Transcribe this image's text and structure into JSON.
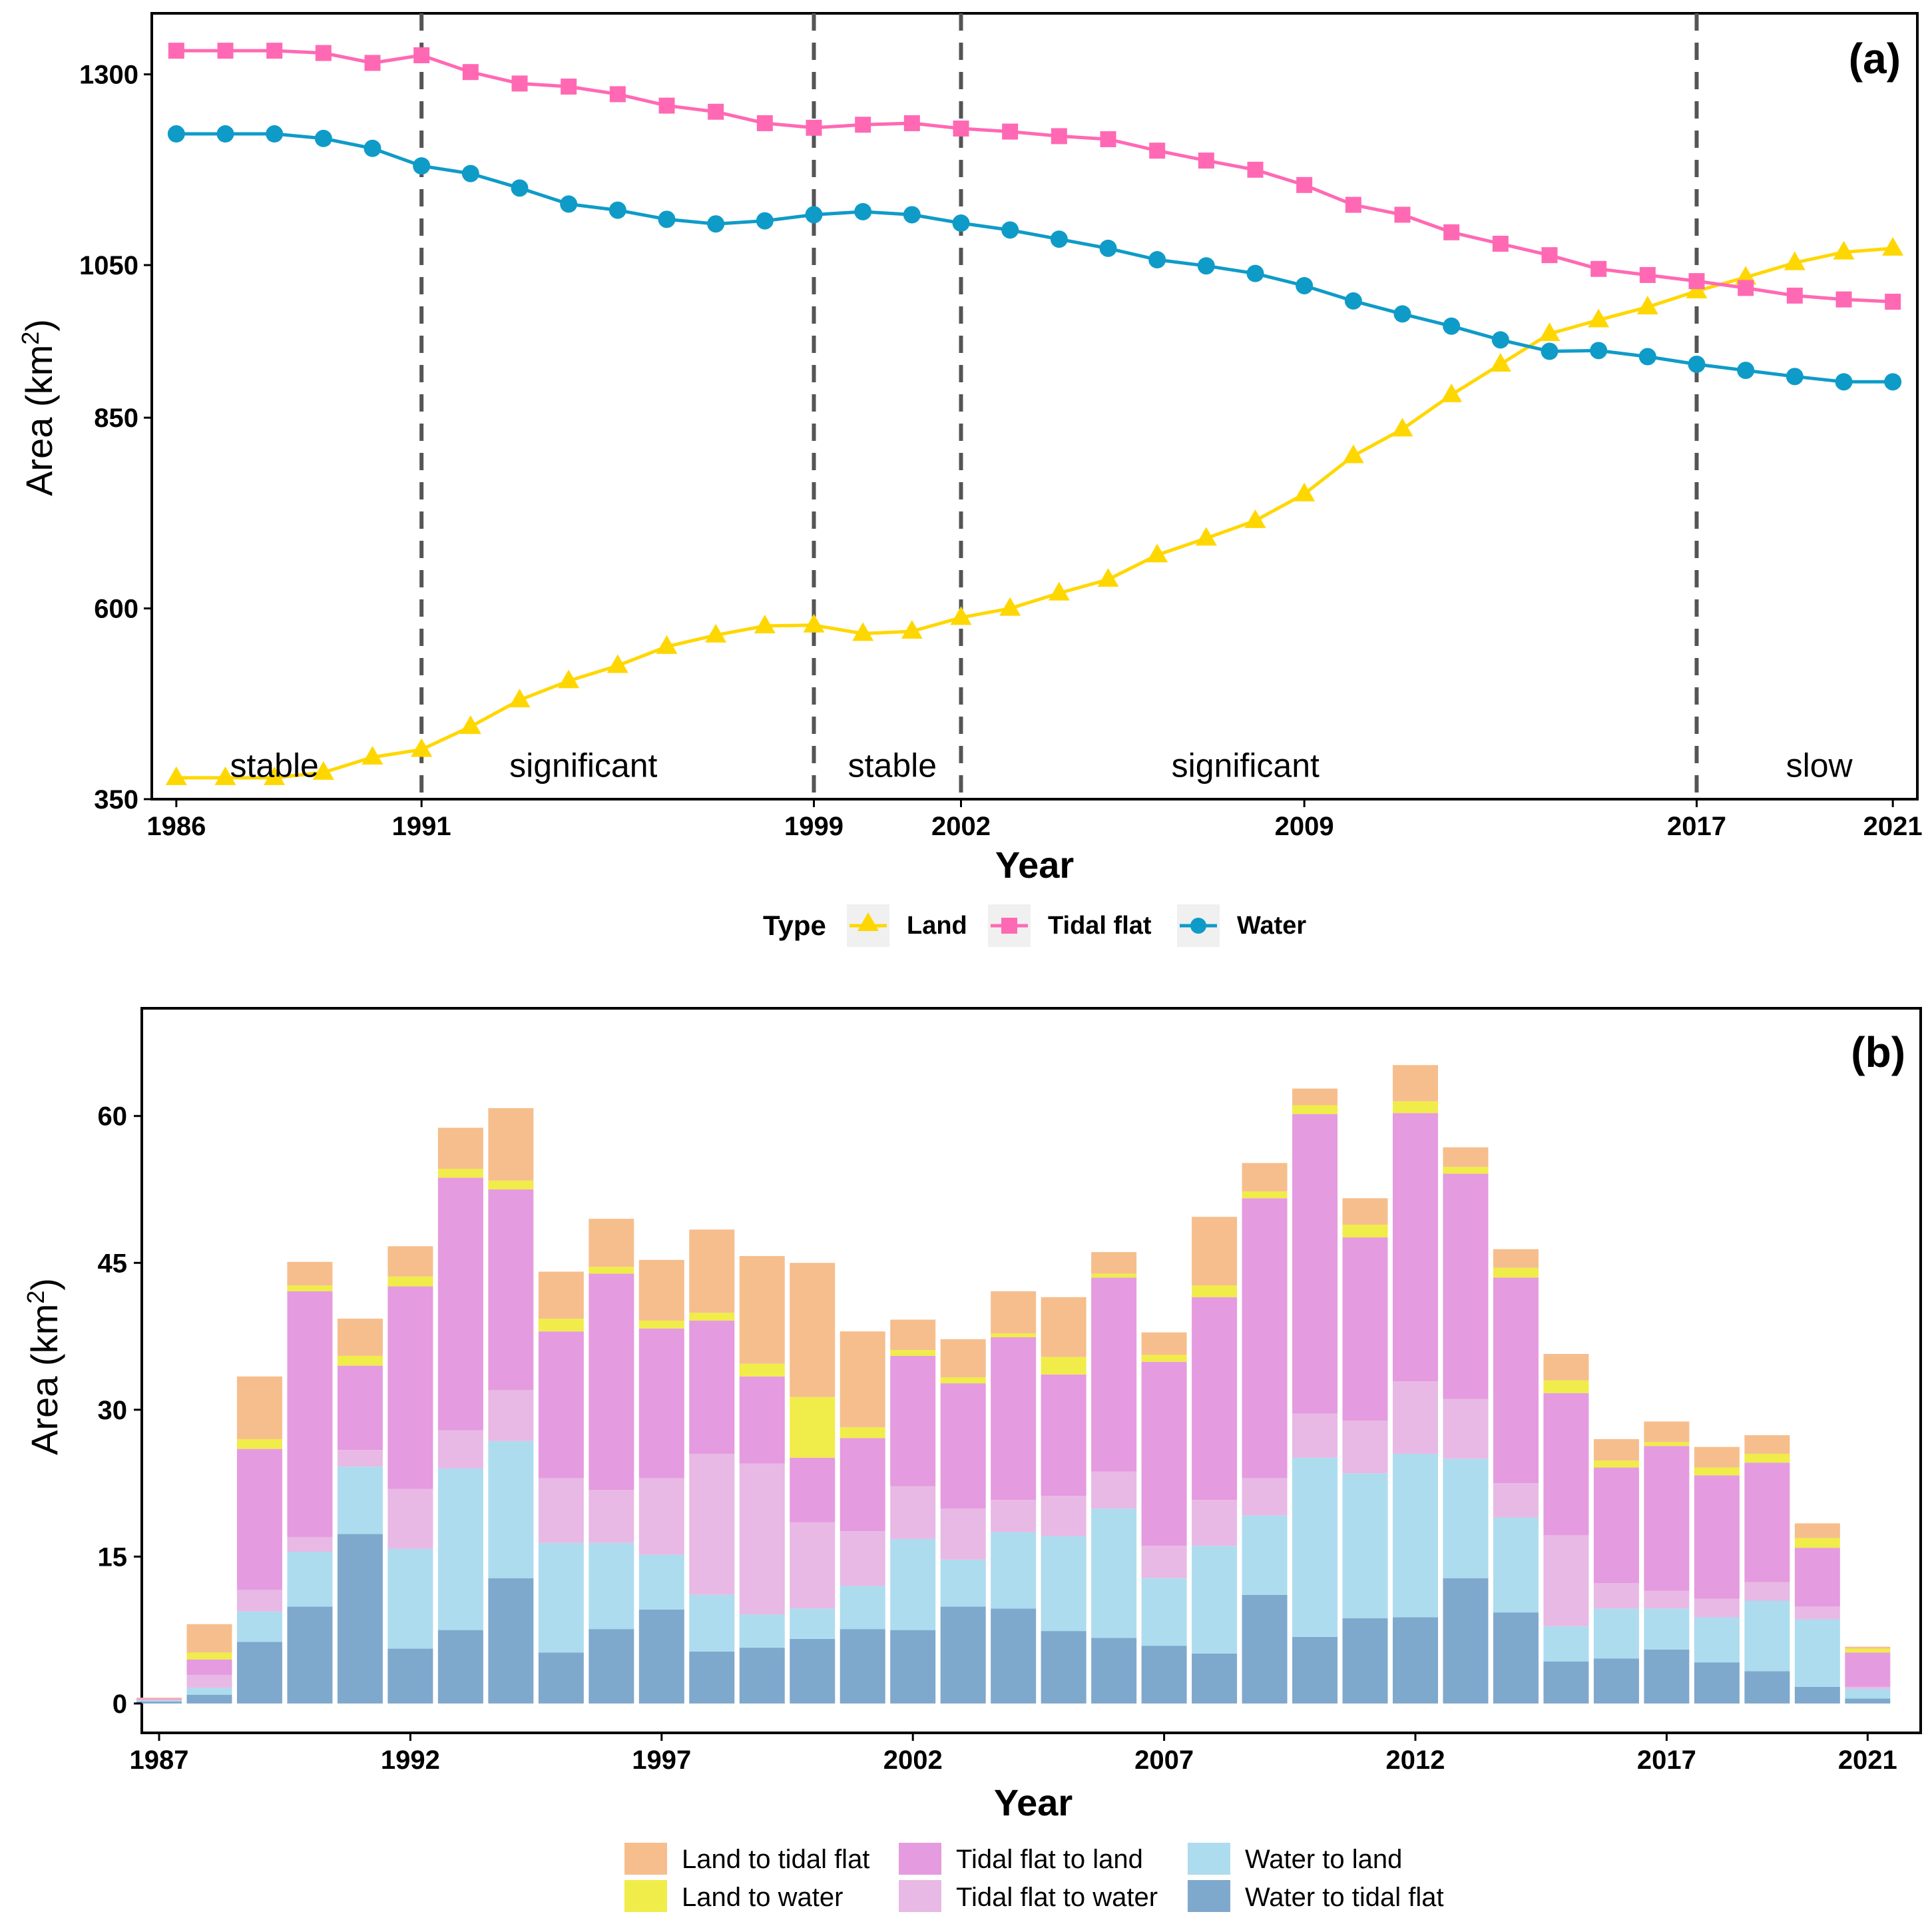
{
  "chart_data": [
    {
      "type": "line",
      "panel_label": "(a)",
      "xlabel": "Year",
      "ylabel": "Area (km",
      "ylabel_sup": "2",
      "ylabel_close": ")",
      "ylim": [
        350,
        1380
      ],
      "yticks": [
        350,
        600,
        850,
        1050,
        1300
      ],
      "xlim": [
        1985.5,
        2021.5
      ],
      "xticks": [
        1986,
        1991,
        1999,
        2002,
        2009,
        2017,
        2021
      ],
      "breakpoints": [
        1991,
        1999,
        2002,
        2017
      ],
      "phases": [
        {
          "label": "stable",
          "x": 1988
        },
        {
          "label": "significant",
          "x": 1994.3
        },
        {
          "label": "stable",
          "x": 2000.6
        },
        {
          "label": "significant",
          "x": 2007.8
        },
        {
          "label": "slow",
          "x": 2019.5
        }
      ],
      "phase_y": 395,
      "legend_title": "Type",
      "x": [
        1986,
        1987,
        1988,
        1989,
        1990,
        1991,
        1992,
        1993,
        1994,
        1995,
        1996,
        1997,
        1998,
        1999,
        2000,
        2001,
        2002,
        2003,
        2004,
        2005,
        2006,
        2007,
        2008,
        2009,
        2010,
        2011,
        2012,
        2013,
        2014,
        2015,
        2016,
        2017,
        2018,
        2019,
        2020,
        2021
      ],
      "series": [
        {
          "name": "Land",
          "color": "#FFD700",
          "marker": "triangle",
          "values": [
            378,
            378,
            378,
            385,
            405,
            415,
            445,
            480,
            505,
            525,
            550,
            565,
            577,
            578,
            567,
            570,
            588,
            600,
            620,
            638,
            670,
            692,
            715,
            750,
            800,
            835,
            880,
            920,
            960,
            978,
            995,
            1016,
            1034,
            1053,
            1067,
            1072
          ]
        },
        {
          "name": "Tidal flat",
          "color": "#FF69B4",
          "marker": "square",
          "values": [
            1331,
            1331,
            1331,
            1328,
            1315,
            1325,
            1303,
            1288,
            1284,
            1274,
            1259,
            1251,
            1236,
            1230,
            1234,
            1236,
            1229,
            1225,
            1219,
            1215,
            1200,
            1187,
            1175,
            1155,
            1129,
            1116,
            1093,
            1078,
            1063,
            1045,
            1037,
            1029,
            1020,
            1010,
            1005,
            1002
          ]
        },
        {
          "name": "Water",
          "color": "#0F9BC8",
          "marker": "circle",
          "values": [
            1222,
            1222,
            1222,
            1216,
            1203,
            1180,
            1170,
            1151,
            1130,
            1122,
            1110,
            1104,
            1108,
            1116,
            1120,
            1116,
            1105,
            1096,
            1084,
            1072,
            1057,
            1049,
            1039,
            1023,
            1003,
            986,
            970,
            952,
            937,
            938,
            930,
            920,
            912,
            904,
            897,
            897
          ]
        }
      ]
    },
    {
      "type": "bar",
      "stacked": true,
      "panel_label": "(b)",
      "xlabel": "Year",
      "ylabel": "Area (km",
      "ylabel_sup": "2",
      "ylabel_close": ")",
      "ylim": [
        -3,
        71
      ],
      "yticks": [
        0,
        15,
        30,
        45,
        60
      ],
      "xticks": [
        1987,
        1992,
        1997,
        2002,
        2007,
        2012,
        2017,
        2021
      ],
      "categories": [
        1987,
        1988,
        1989,
        1990,
        1991,
        1992,
        1993,
        1994,
        1995,
        1996,
        1997,
        1998,
        1999,
        2000,
        2001,
        2002,
        2003,
        2004,
        2005,
        2006,
        2007,
        2008,
        2009,
        2010,
        2011,
        2012,
        2013,
        2014,
        2015,
        2016,
        2017,
        2018,
        2019,
        2020,
        2021
      ],
      "legend_order": [
        "Land to tidal flat",
        "Land to water",
        "Tidal flat to land",
        "Tidal flat to water",
        "Water to land",
        "Water to tidal flat"
      ],
      "series": [
        {
          "name": "Water to tidal flat",
          "color": "#7FA8CD",
          "values": [
            0.2,
            0.9,
            6.3,
            9.9,
            17.3,
            5.6,
            7.5,
            12.8,
            5.2,
            7.6,
            9.6,
            5.3,
            5.7,
            6.6,
            7.6,
            7.5,
            9.9,
            9.7,
            7.4,
            6.7,
            5.9,
            5.1,
            11.1,
            6.8,
            8.7,
            8.8,
            12.8,
            9.3,
            4.3,
            4.6,
            5.5,
            4.2,
            3.3,
            1.7,
            0.5
          ]
        },
        {
          "name": "Water to land",
          "color": "#ADDCEE",
          "values": [
            0.1,
            0.7,
            3.1,
            5.6,
            6.9,
            10.2,
            16.5,
            14.0,
            11.2,
            8.8,
            5.6,
            5.8,
            3.4,
            3.1,
            4.4,
            9.3,
            4.8,
            7.8,
            9.7,
            13.2,
            6.9,
            11.0,
            8.1,
            18.3,
            14.8,
            16.7,
            12.2,
            9.7,
            3.6,
            5.1,
            4.2,
            4.6,
            7.2,
            6.9,
            1.0
          ]
        },
        {
          "name": "Tidal flat to water",
          "color": "#E8B9E4",
          "values": [
            0.1,
            1.3,
            2.2,
            1.5,
            1.7,
            6.1,
            3.9,
            5.2,
            6.6,
            5.4,
            7.8,
            14.4,
            15.4,
            8.8,
            5.6,
            5.4,
            5.2,
            3.3,
            4.1,
            3.8,
            3.3,
            4.7,
            3.8,
            4.5,
            5.4,
            7.4,
            6.1,
            3.5,
            9.3,
            2.6,
            1.8,
            1.9,
            1.9,
            1.3,
            0.2
          ]
        },
        {
          "name": "Tidal flat to land",
          "color": "#E59BDF",
          "values": [
            0.1,
            1.6,
            14.4,
            25.1,
            8.6,
            20.7,
            25.8,
            20.5,
            15.0,
            22.1,
            15.3,
            13.6,
            8.9,
            6.6,
            9.5,
            13.3,
            12.8,
            16.6,
            12.4,
            19.8,
            18.8,
            20.7,
            28.6,
            30.6,
            18.7,
            27.4,
            23.0,
            21.0,
            14.5,
            11.8,
            14.8,
            12.6,
            12.2,
            6.0,
            3.5
          ]
        },
        {
          "name": "Land to water",
          "color": "#F0EC4A",
          "values": [
            0.0,
            0.7,
            1.0,
            0.6,
            1.0,
            1.0,
            0.9,
            0.9,
            1.3,
            0.7,
            0.8,
            0.8,
            1.3,
            6.2,
            1.1,
            0.6,
            0.6,
            0.4,
            1.8,
            0.4,
            0.7,
            1.2,
            0.7,
            0.9,
            1.3,
            1.2,
            0.7,
            1.0,
            1.3,
            0.7,
            0.4,
            0.8,
            0.9,
            1.0,
            0.4
          ]
        },
        {
          "name": "Land to tidal flat",
          "color": "#F6BE8D",
          "values": [
            0.1,
            2.9,
            6.4,
            2.4,
            3.8,
            3.1,
            4.2,
            7.4,
            4.8,
            4.9,
            6.2,
            8.5,
            11.0,
            13.7,
            9.8,
            3.1,
            3.9,
            4.3,
            6.1,
            2.2,
            2.3,
            7.0,
            2.9,
            1.7,
            2.7,
            3.7,
            2.0,
            1.9,
            2.7,
            2.2,
            2.1,
            2.1,
            1.9,
            1.5,
            0.2
          ]
        }
      ]
    }
  ]
}
